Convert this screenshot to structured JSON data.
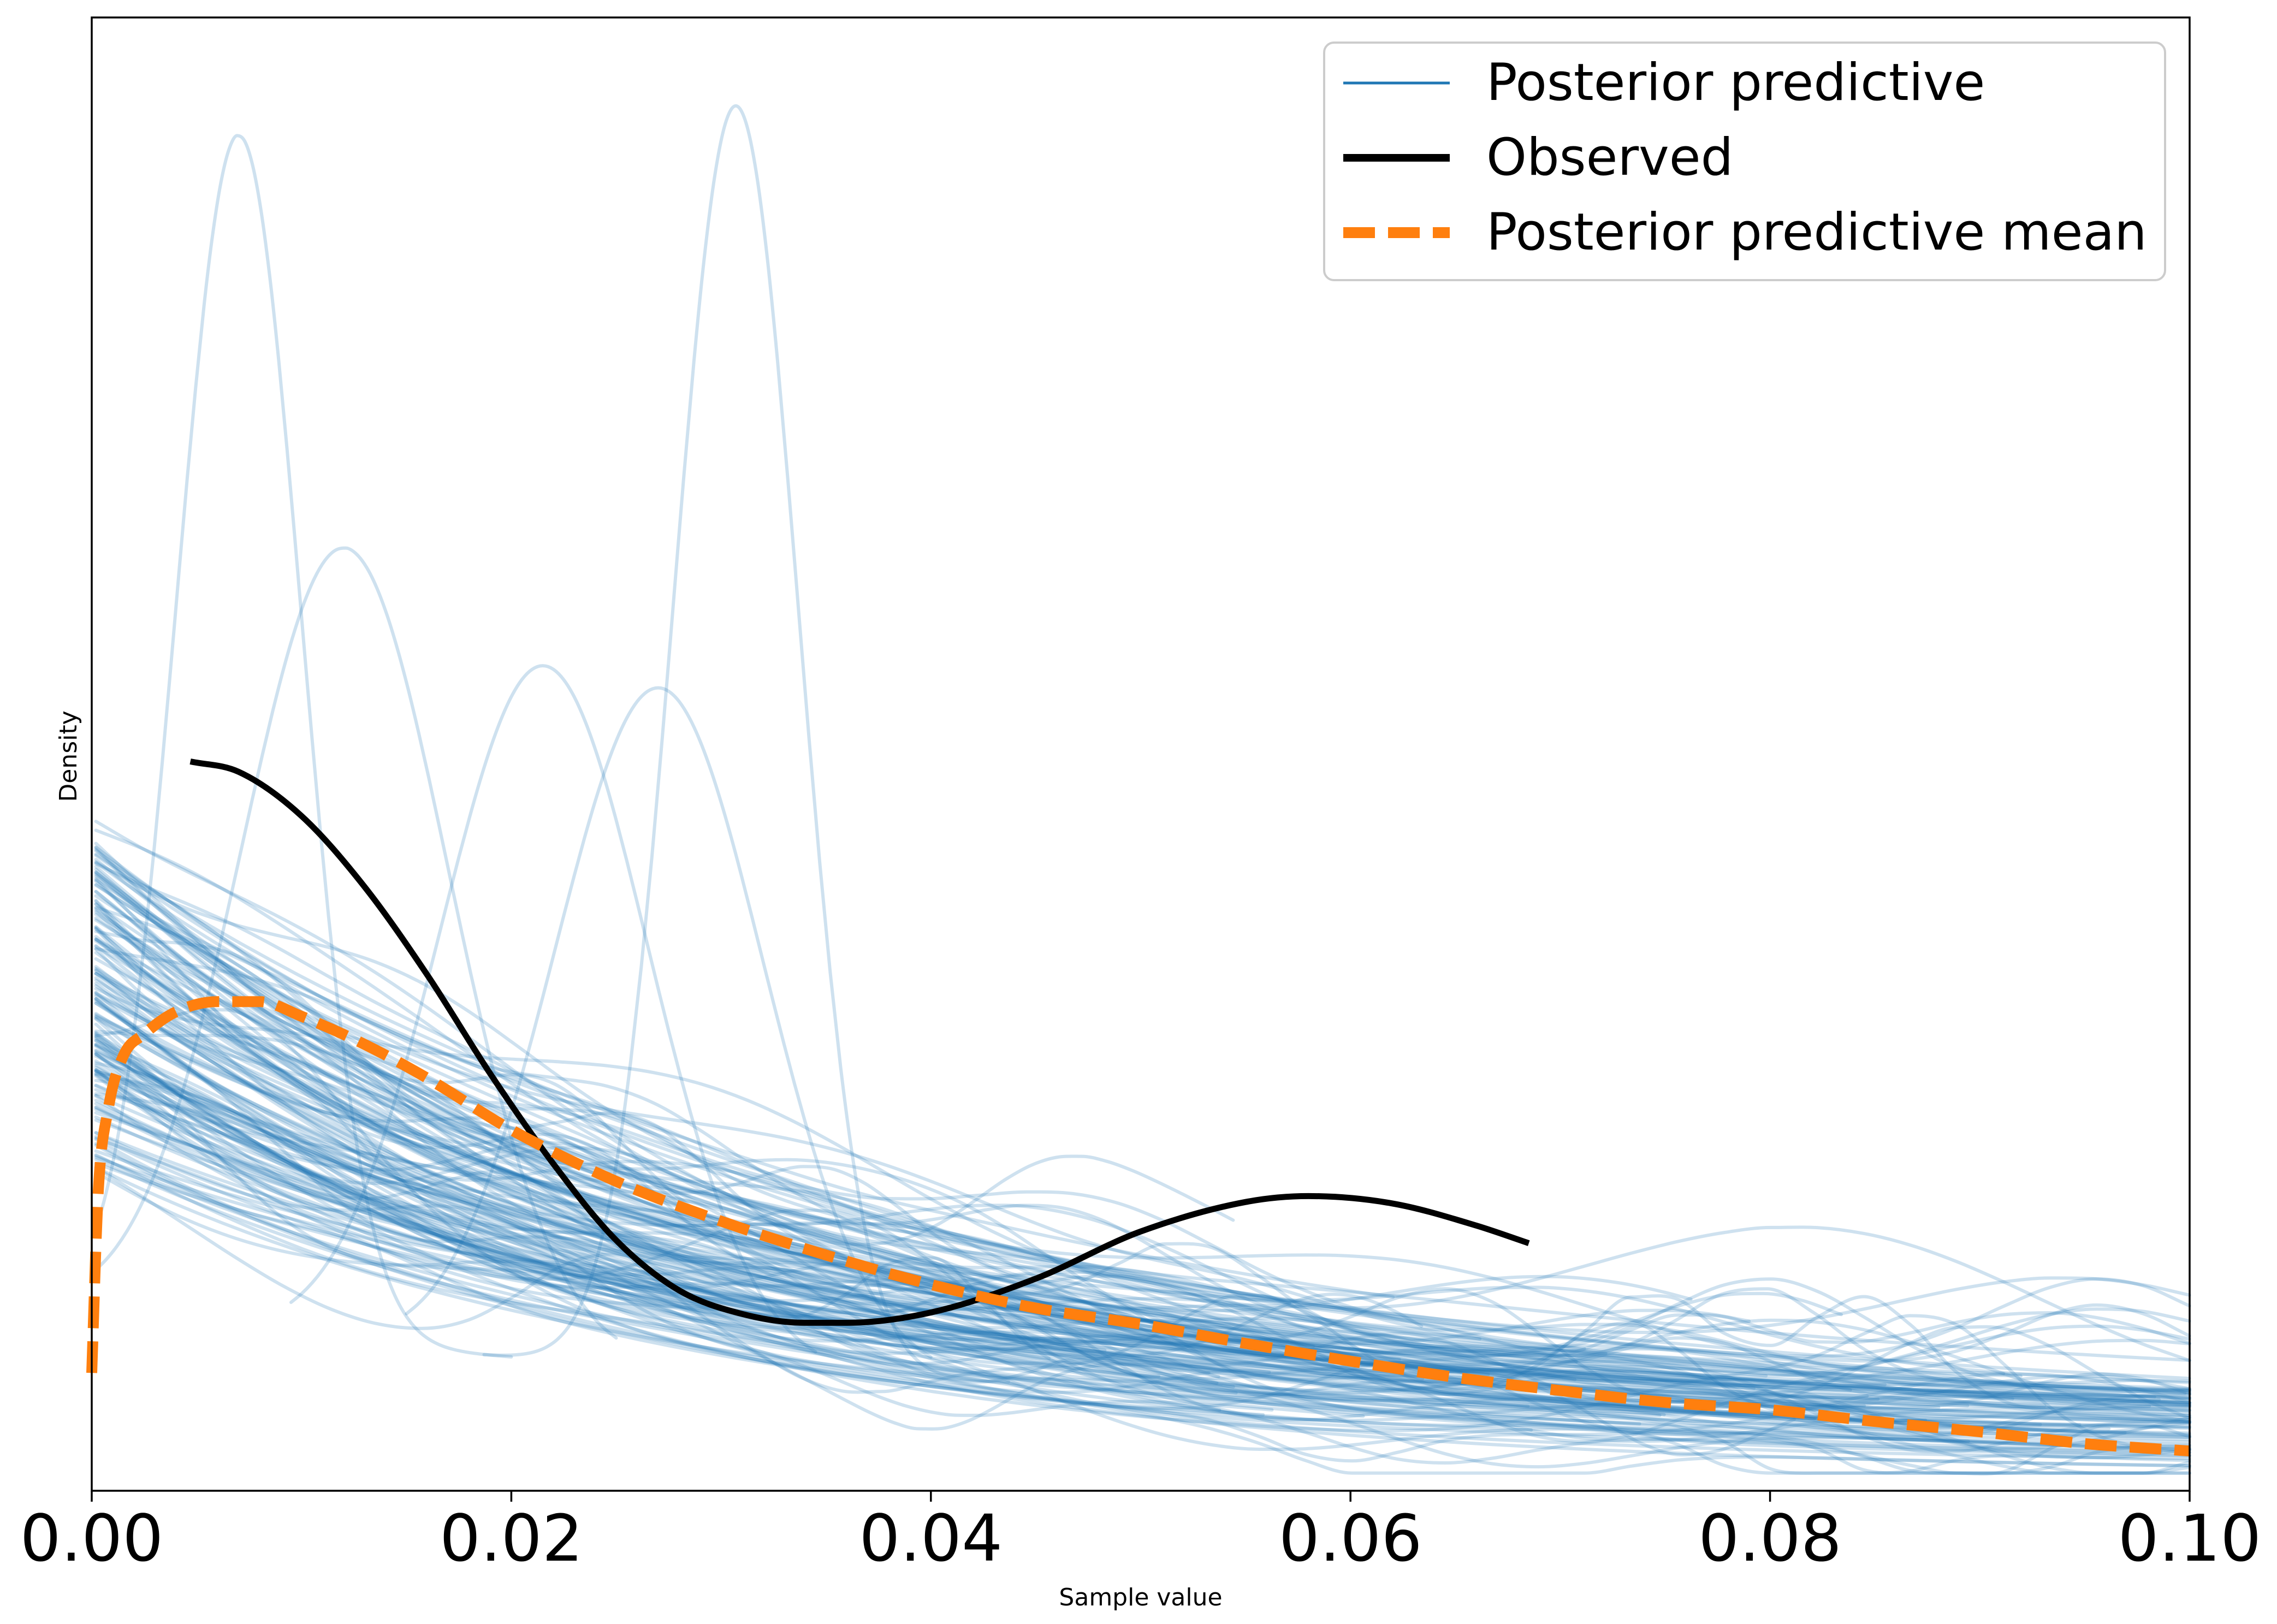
{
  "chart_data": {
    "type": "line",
    "title": "",
    "xlabel": "Sample value",
    "ylabel": "Density",
    "xlim": [
      0,
      0.1
    ],
    "ylim": [
      0,
      1.0
    ],
    "x_ticks": [
      "0.00",
      "0.02",
      "0.04",
      "0.06",
      "0.08",
      "0.10"
    ],
    "y_ticks_shown": false,
    "grid": false,
    "legend": {
      "position": "top-right",
      "entries": [
        {
          "label": "Posterior predictive",
          "style": "solid-thin"
        },
        {
          "label": "Observed",
          "style": "solid-thick"
        },
        {
          "label": "Posterior predictive mean",
          "style": "dashed-thick"
        }
      ]
    },
    "colors": {
      "posterior_predictive": "#1f77b4",
      "observed": "#000000",
      "posterior_predictive_mean": "#ff7f0e"
    },
    "series": [
      {
        "name": "Observed",
        "x": [
          0.0047,
          0.007,
          0.01,
          0.013,
          0.016,
          0.019,
          0.022,
          0.025,
          0.028,
          0.031,
          0.034,
          0.036,
          0.04,
          0.045,
          0.05,
          0.055,
          0.058,
          0.062,
          0.066,
          0.0685
        ],
        "y": [
          0.495,
          0.488,
          0.458,
          0.41,
          0.35,
          0.283,
          0.222,
          0.17,
          0.136,
          0.12,
          0.114,
          0.114,
          0.121,
          0.144,
          0.176,
          0.196,
          0.2,
          0.195,
          0.18,
          0.168
        ]
      },
      {
        "name": "Posterior predictive mean",
        "x": [
          0.0,
          0.0003,
          0.0008,
          0.0015,
          0.0025,
          0.004,
          0.006,
          0.008,
          0.01,
          0.013,
          0.016,
          0.02,
          0.025,
          0.03,
          0.035,
          0.04,
          0.045,
          0.05,
          0.055,
          0.06,
          0.065,
          0.07,
          0.075,
          0.08,
          0.085,
          0.09,
          0.095,
          0.1
        ],
        "y": [
          0.08,
          0.2,
          0.26,
          0.295,
          0.31,
          0.325,
          0.332,
          0.332,
          0.322,
          0.303,
          0.28,
          0.245,
          0.21,
          0.183,
          0.16,
          0.14,
          0.124,
          0.113,
          0.1,
          0.088,
          0.077,
          0.068,
          0.06,
          0.055,
          0.047,
          0.04,
          0.032,
          0.027
        ]
      }
    ],
    "posterior_predictive_samples": {
      "count": 150,
      "alpha": 0.22,
      "shape": "kernel density curves of posterior predictive draws, mostly decreasing from 0.25-0.45 at x=0 to 0.01-0.06 at x=0.1, with a few sharp peaks",
      "highlighted_peaks": [
        {
          "x": 0.007,
          "y": 0.92
        },
        {
          "x": 0.0307,
          "y": 0.94
        },
        {
          "x": 0.012,
          "y": 0.64
        },
        {
          "x": 0.0215,
          "y": 0.56
        },
        {
          "x": 0.027,
          "y": 0.545
        }
      ]
    }
  }
}
